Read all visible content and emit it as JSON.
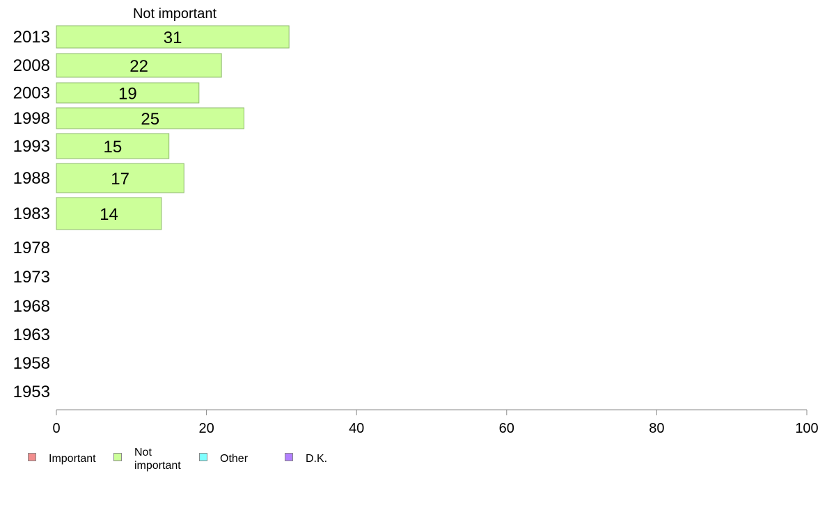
{
  "chart_data": {
    "type": "bar",
    "orientation": "horizontal",
    "title": "Not important",
    "categories": [
      "2013",
      "2008",
      "2003",
      "1998",
      "1993",
      "1988",
      "1983",
      "1978",
      "1973",
      "1968",
      "1963",
      "1958",
      "1953"
    ],
    "series": [
      {
        "name": "Not important",
        "color": "#ccff99",
        "values": [
          31,
          22,
          19,
          25,
          15,
          17,
          14,
          null,
          null,
          null,
          null,
          null,
          null
        ]
      }
    ],
    "xlim": [
      0,
      100
    ],
    "xticks": [
      0,
      20,
      40,
      60,
      80,
      100
    ],
    "grid": false,
    "legend_position": "bottom-left",
    "legend": [
      {
        "label": "Important",
        "color": "#f28e8e"
      },
      {
        "label": "Not\nimportant",
        "color": "#ccff99"
      },
      {
        "label": "Other",
        "color": "#80ffff"
      },
      {
        "label": "D.K.",
        "color": "#b380ff"
      }
    ]
  }
}
